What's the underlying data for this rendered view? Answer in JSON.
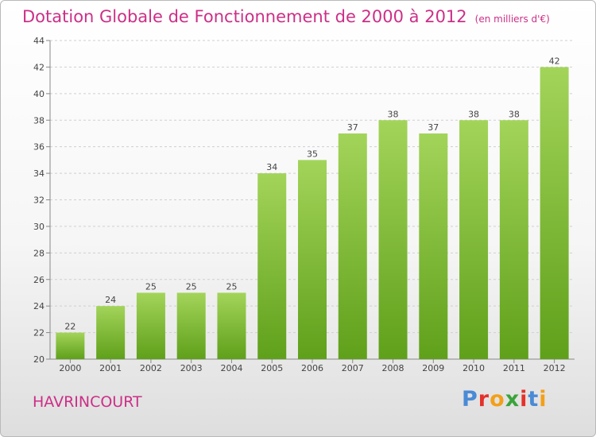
{
  "header": {
    "title": "Dotation Globale de Fonctionnement de 2000 à 2012",
    "subtitle": "(en milliers d'€)"
  },
  "footer": {
    "city": "HAVRINCOURT",
    "logo_text": "Proxiti",
    "logo_colors": [
      "#4a8ad6",
      "#e4312b",
      "#f2a01a",
      "#3aa43a",
      "#e4312b",
      "#4a8ad6",
      "#f2a01a"
    ]
  },
  "colors": {
    "bar_top": "#a3d45a",
    "bar_bottom": "#5fa01a",
    "title": "#cc2f87",
    "text": "#444444"
  },
  "chart_data": {
    "type": "bar",
    "title": "Dotation Globale de Fonctionnement de 2000 à 2012",
    "subtitle": "(en milliers d'€)",
    "categories": [
      "2000",
      "2001",
      "2002",
      "2003",
      "2004",
      "2005",
      "2006",
      "2007",
      "2008",
      "2009",
      "2010",
      "2011",
      "2012"
    ],
    "values": [
      22,
      24,
      25,
      25,
      25,
      34,
      35,
      37,
      38,
      37,
      38,
      38,
      42
    ],
    "ylim": [
      20,
      44
    ],
    "yticks": [
      20,
      22,
      24,
      26,
      28,
      30,
      32,
      34,
      36,
      38,
      40,
      42,
      44
    ],
    "grid": true,
    "xlabel": "",
    "ylabel": ""
  }
}
